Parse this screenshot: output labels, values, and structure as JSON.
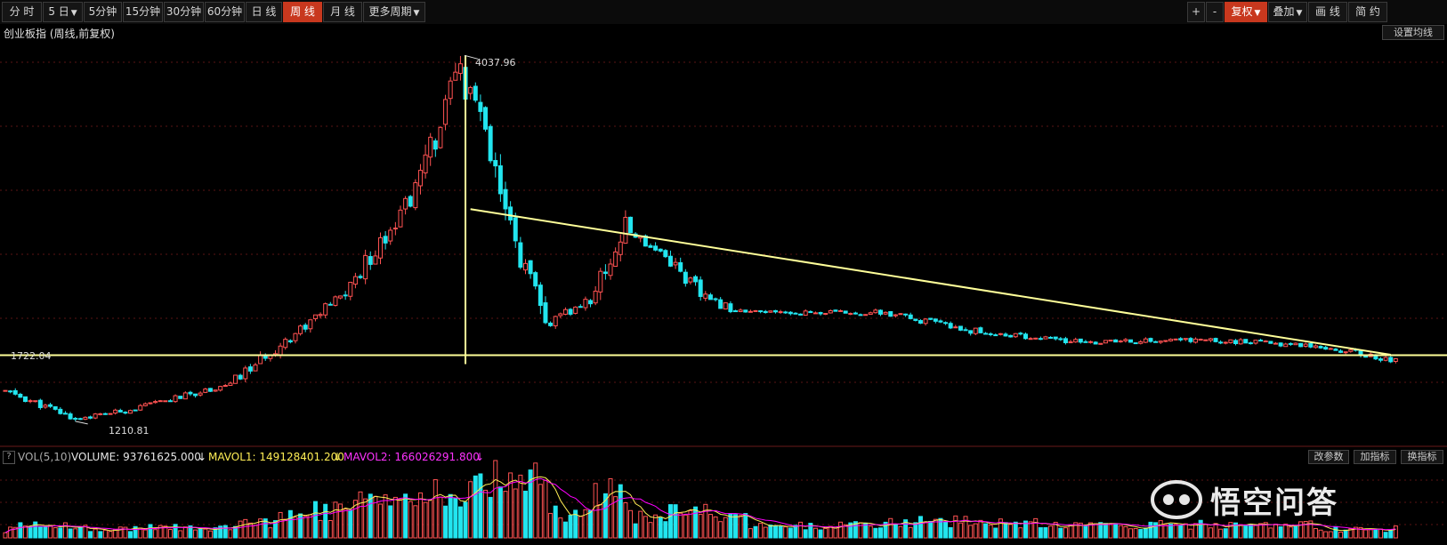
{
  "toolbar": {
    "left": [
      {
        "id": "fenshi",
        "label": "分 时"
      },
      {
        "id": "5day",
        "label": "5 日",
        "dropdown": true
      },
      {
        "id": "5min",
        "label": "5分钟"
      },
      {
        "id": "15min",
        "label": "15分钟"
      },
      {
        "id": "30min",
        "label": "30分钟"
      },
      {
        "id": "60min",
        "label": "60分钟"
      },
      {
        "id": "daily",
        "label": "日 线"
      },
      {
        "id": "weekly",
        "label": "周 线",
        "active": true
      },
      {
        "id": "monthly",
        "label": "月 线"
      },
      {
        "id": "more-periods",
        "label": "更多周期",
        "dropdown": true
      }
    ],
    "right": [
      {
        "id": "zoom-in",
        "label": "+"
      },
      {
        "id": "zoom-out",
        "label": "-"
      },
      {
        "id": "fuquan",
        "label": "复权",
        "dropdown": true,
        "active": true
      },
      {
        "id": "overlay",
        "label": "叠加",
        "dropdown": true
      },
      {
        "id": "draw-line",
        "label": "画 线"
      },
      {
        "id": "simple",
        "label": "简 约"
      }
    ]
  },
  "chart_title": "创业板指 (周线,前复权)",
  "set_ma_button": "设置均线",
  "price_annotations": {
    "high": "4037.96",
    "low": "1210.81",
    "support": "1722.04"
  },
  "volume_bar": {
    "help": "?",
    "indicator": "VOL(5,10)",
    "volume": "VOLUME: 93761625.000",
    "mavol1": "MAVOL1: 149128401.200",
    "mavol2": "MAVOL2: 166026291.800",
    "buttons": [
      "改参数",
      "加指标",
      "换指标"
    ]
  },
  "watermark": "悟空问答",
  "colors": {
    "up": "#ff5252",
    "down": "#22e5ef",
    "trendline": "#ffff99",
    "active": "#c8381e",
    "mavol2": "#ff00ff",
    "mavol1": "#ffee55"
  },
  "chart_data": {
    "type": "candlestick",
    "period": "weekly",
    "price_anchors": [
      {
        "week": 0,
        "price": 1445
      },
      {
        "week": 14,
        "price": 1230
      },
      {
        "week": 25,
        "price": 1300
      },
      {
        "week": 45,
        "price": 1500
      },
      {
        "week": 68,
        "price": 2200
      },
      {
        "week": 82,
        "price": 3000
      },
      {
        "week": 92,
        "price": 4037.96
      },
      {
        "week": 95,
        "price": 3500
      },
      {
        "week": 100,
        "price": 2800
      },
      {
        "week": 108,
        "price": 1950
      },
      {
        "week": 117,
        "price": 2150
      },
      {
        "week": 124,
        "price": 2700
      },
      {
        "week": 132,
        "price": 2500
      },
      {
        "week": 140,
        "price": 2150
      },
      {
        "week": 148,
        "price": 2050
      },
      {
        "week": 158,
        "price": 2050
      },
      {
        "week": 175,
        "price": 2050
      },
      {
        "week": 195,
        "price": 1900
      },
      {
        "week": 215,
        "price": 1820
      },
      {
        "week": 238,
        "price": 1840
      },
      {
        "week": 262,
        "price": 1800
      },
      {
        "week": 278,
        "price": 1680
      }
    ],
    "high": 4037.96,
    "low": 1210.81,
    "support_level": 1722.04,
    "volume_series": [
      "MAVOL1",
      "MAVOL2"
    ]
  }
}
